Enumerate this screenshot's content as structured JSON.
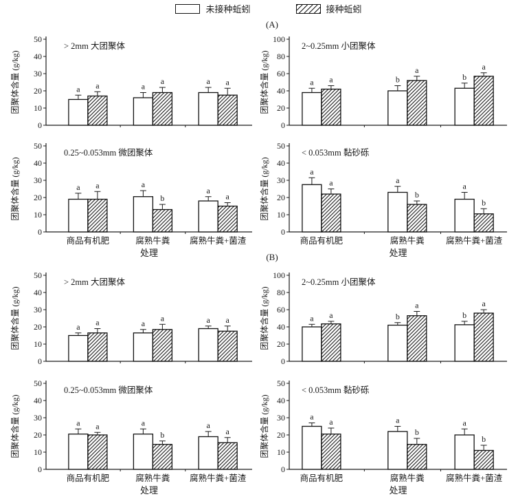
{
  "colors": {
    "ink": "#1a1a1a",
    "background": "#ffffff"
  },
  "legend": {
    "position": "top-center",
    "items": [
      {
        "label": "未接种蚯蚓",
        "style": "open"
      },
      {
        "label": "接种蚯蚓",
        "style": "hatched"
      }
    ]
  },
  "panels": [
    {
      "label": "(A)"
    },
    {
      "label": "(B)"
    }
  ],
  "chart_data": [
    {
      "panel": "A",
      "type": "bar",
      "title": "> 2mm 大团聚体",
      "ylabel": "团聚体含量 (g/kg)",
      "xlabel": "处理",
      "ylim": [
        0,
        50
      ],
      "yticks": [
        0,
        10,
        20,
        30,
        40,
        50
      ],
      "grid": false,
      "categories": [
        "商品有机肥",
        "腐熟牛粪",
        "腐熟牛粪+菌渣"
      ],
      "x_tick_labels_visible": false,
      "series": [
        {
          "name": "未接种蚯蚓",
          "style": "open",
          "values": [
            15,
            16,
            19
          ],
          "errors": [
            2.5,
            3,
            3
          ],
          "sig_letters": [
            "a",
            "a",
            "a"
          ]
        },
        {
          "name": "接种蚯蚓",
          "style": "hatched",
          "values": [
            17,
            19,
            17.5
          ],
          "errors": [
            2.5,
            3,
            4
          ],
          "sig_letters": [
            "a",
            "a",
            "a"
          ]
        }
      ]
    },
    {
      "panel": "A",
      "type": "bar",
      "title": "2~0.25mm 小团聚体",
      "ylabel": "团聚体含量 (g/kg)",
      "xlabel": "处理",
      "ylim": [
        0,
        100
      ],
      "yticks": [
        0,
        20,
        40,
        60,
        80,
        100
      ],
      "grid": false,
      "categories": [
        "商品有机肥",
        "腐熟牛粪",
        "腐熟牛粪+菌渣"
      ],
      "x_tick_labels_visible": false,
      "series": [
        {
          "name": "未接种蚯蚓",
          "style": "open",
          "values": [
            38,
            40,
            43
          ],
          "errors": [
            5,
            6,
            6
          ],
          "sig_letters": [
            "a",
            "b",
            "b"
          ]
        },
        {
          "name": "接种蚯蚓",
          "style": "hatched",
          "values": [
            42,
            52,
            57
          ],
          "errors": [
            4,
            5,
            4
          ],
          "sig_letters": [
            "a",
            "a",
            "a"
          ]
        }
      ]
    },
    {
      "panel": "A",
      "type": "bar",
      "title": "0.25~0.053mm 微团聚体",
      "ylabel": "团聚体含量 (g/kg)",
      "xlabel": "处理",
      "ylim": [
        0,
        50
      ],
      "yticks": [
        0,
        10,
        20,
        30,
        40,
        50
      ],
      "grid": false,
      "categories": [
        "商品有机肥",
        "腐熟牛粪",
        "腐熟牛粪+菌渣"
      ],
      "x_tick_labels_visible": true,
      "series": [
        {
          "name": "未接种蚯蚓",
          "style": "open",
          "values": [
            19,
            20.5,
            18
          ],
          "errors": [
            3.5,
            3.5,
            2.5
          ],
          "sig_letters": [
            "a",
            "a",
            "a"
          ]
        },
        {
          "name": "接种蚯蚓",
          "style": "hatched",
          "values": [
            19,
            13,
            15
          ],
          "errors": [
            4.5,
            3,
            2
          ],
          "sig_letters": [
            "a",
            "b",
            "a"
          ]
        }
      ]
    },
    {
      "panel": "A",
      "type": "bar",
      "title": "< 0.053mm 黏砂砾",
      "ylabel": "团聚体含量 (g/kg)",
      "xlabel": "处理",
      "ylim": [
        0,
        50
      ],
      "yticks": [
        0,
        10,
        20,
        30,
        40,
        50
      ],
      "grid": false,
      "categories": [
        "商品有机肥",
        "腐熟牛粪",
        "腐熟牛粪+菌渣"
      ],
      "x_tick_labels_visible": true,
      "series": [
        {
          "name": "未接种蚯蚓",
          "style": "open",
          "values": [
            27.5,
            23,
            19
          ],
          "errors": [
            4,
            3.5,
            4
          ],
          "sig_letters": [
            "a",
            "a",
            "a"
          ]
        },
        {
          "name": "接种蚯蚓",
          "style": "hatched",
          "values": [
            22,
            16,
            10.5
          ],
          "errors": [
            3,
            2,
            3
          ],
          "sig_letters": [
            "a",
            "b",
            "b"
          ]
        }
      ]
    },
    {
      "panel": "B",
      "type": "bar",
      "title": "> 2mm 大团聚体",
      "ylabel": "团聚体含量 (g/kg)",
      "xlabel": "处理",
      "ylim": [
        0,
        50
      ],
      "yticks": [
        0,
        10,
        20,
        30,
        40,
        50
      ],
      "grid": false,
      "categories": [
        "商品有机肥",
        "腐熟牛粪",
        "腐熟牛粪+菌渣"
      ],
      "x_tick_labels_visible": false,
      "series": [
        {
          "name": "未接种蚯蚓",
          "style": "open",
          "values": [
            15,
            16.5,
            19
          ],
          "errors": [
            1.5,
            2,
            1.5
          ],
          "sig_letters": [
            "a",
            "a",
            "a"
          ]
        },
        {
          "name": "接种蚯蚓",
          "style": "hatched",
          "values": [
            16.5,
            18.5,
            17.5
          ],
          "errors": [
            2.5,
            3,
            3
          ],
          "sig_letters": [
            "a",
            "a",
            "a"
          ]
        }
      ]
    },
    {
      "panel": "B",
      "type": "bar",
      "title": "2~0.25mm 小团聚体",
      "ylabel": "团聚体含量 (g/kg)",
      "xlabel": "处理",
      "ylim": [
        0,
        100
      ],
      "yticks": [
        0,
        20,
        40,
        60,
        80,
        100
      ],
      "grid": false,
      "categories": [
        "商品有机肥",
        "腐熟牛粪",
        "腐熟牛粪+菌渣"
      ],
      "x_tick_labels_visible": false,
      "series": [
        {
          "name": "未接种蚯蚓",
          "style": "open",
          "values": [
            40,
            42,
            42.5
          ],
          "errors": [
            3,
            3,
            4
          ],
          "sig_letters": [
            "a",
            "b",
            "b"
          ]
        },
        {
          "name": "接种蚯蚓",
          "style": "hatched",
          "values": [
            43.5,
            53,
            56
          ],
          "errors": [
            3,
            5,
            4
          ],
          "sig_letters": [
            "a",
            "a",
            "a"
          ]
        }
      ]
    },
    {
      "panel": "B",
      "type": "bar",
      "title": "0.25~0.053mm 微团聚体",
      "ylabel": "团聚体含量 (g/kg)",
      "xlabel": "处理",
      "ylim": [
        0,
        50
      ],
      "yticks": [
        0,
        10,
        20,
        30,
        40,
        50
      ],
      "grid": false,
      "categories": [
        "商品有机肥",
        "腐熟牛粪",
        "腐熟牛粪+菌渣"
      ],
      "x_tick_labels_visible": true,
      "series": [
        {
          "name": "未接种蚯蚓",
          "style": "open",
          "values": [
            20.5,
            20.5,
            19
          ],
          "errors": [
            3,
            3,
            3
          ],
          "sig_letters": [
            "a",
            "a",
            "a"
          ]
        },
        {
          "name": "接种蚯蚓",
          "style": "hatched",
          "values": [
            20,
            14.5,
            15.5
          ],
          "errors": [
            1.5,
            2,
            3
          ],
          "sig_letters": [
            "a",
            "b",
            "a"
          ]
        }
      ]
    },
    {
      "panel": "B",
      "type": "bar",
      "title": "< 0.053mm 黏砂砾",
      "ylabel": "团聚体含量 (g/kg)",
      "xlabel": "处理",
      "ylim": [
        0,
        50
      ],
      "yticks": [
        0,
        10,
        20,
        30,
        40,
        50
      ],
      "grid": false,
      "categories": [
        "商品有机肥",
        "腐熟牛粪",
        "腐熟牛粪+菌渣"
      ],
      "x_tick_labels_visible": true,
      "series": [
        {
          "name": "未接种蚯蚓",
          "style": "open",
          "values": [
            25,
            22,
            20
          ],
          "errors": [
            2,
            3,
            3.5
          ],
          "sig_letters": [
            "a",
            "a",
            "a"
          ]
        },
        {
          "name": "接种蚯蚓",
          "style": "hatched",
          "values": [
            20.5,
            14.5,
            11
          ],
          "errors": [
            3.5,
            3.5,
            3
          ],
          "sig_letters": [
            "a",
            "b",
            "b"
          ]
        }
      ]
    }
  ]
}
